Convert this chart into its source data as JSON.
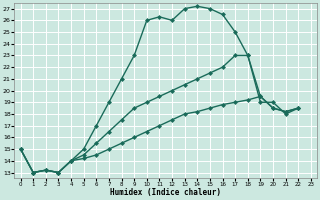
{
  "xlabel": "Humidex (Indice chaleur)",
  "bg_color": "#cce8e0",
  "grid_color": "#b0d8d0",
  "line_color": "#1a6b5a",
  "marker": "D",
  "marker_size": 2,
  "line_width": 1.0,
  "xlim": [
    -0.5,
    23.5
  ],
  "ylim": [
    12.5,
    27.5
  ],
  "xticks": [
    0,
    1,
    2,
    3,
    4,
    5,
    6,
    7,
    8,
    9,
    10,
    11,
    12,
    13,
    14,
    15,
    16,
    17,
    18,
    19,
    20,
    21,
    22,
    23
  ],
  "yticks": [
    13,
    14,
    15,
    16,
    17,
    18,
    19,
    20,
    21,
    22,
    23,
    24,
    25,
    26,
    27
  ],
  "series": [
    [
      [
        0,
        15.0
      ],
      [
        1,
        13.0
      ],
      [
        2,
        13.2
      ],
      [
        3,
        13.0
      ],
      [
        4,
        14.0
      ],
      [
        5,
        15.0
      ],
      [
        6,
        17.0
      ],
      [
        7,
        19.0
      ],
      [
        8,
        21.0
      ],
      [
        9,
        23.0
      ],
      [
        10,
        26.0
      ],
      [
        11,
        26.3
      ],
      [
        12,
        26.0
      ],
      [
        13,
        27.0
      ],
      [
        14,
        27.2
      ],
      [
        15,
        27.0
      ],
      [
        16,
        26.5
      ],
      [
        17,
        25.0
      ],
      [
        18,
        23.0
      ],
      [
        19,
        19.0
      ],
      [
        20,
        19.0
      ],
      [
        21,
        18.0
      ],
      [
        22,
        18.5
      ]
    ],
    [
      [
        0,
        15.0
      ],
      [
        1,
        13.0
      ],
      [
        2,
        13.2
      ],
      [
        3,
        13.0
      ],
      [
        4,
        14.0
      ],
      [
        5,
        14.5
      ],
      [
        6,
        15.5
      ],
      [
        7,
        16.5
      ],
      [
        8,
        17.5
      ],
      [
        9,
        18.5
      ],
      [
        10,
        19.0
      ],
      [
        11,
        19.5
      ],
      [
        12,
        20.0
      ],
      [
        13,
        20.5
      ],
      [
        14,
        21.0
      ],
      [
        15,
        21.5
      ],
      [
        16,
        22.0
      ],
      [
        17,
        23.0
      ],
      [
        18,
        23.0
      ],
      [
        19,
        19.5
      ],
      [
        20,
        18.5
      ],
      [
        21,
        18.2
      ],
      [
        22,
        18.5
      ]
    ],
    [
      [
        0,
        15.0
      ],
      [
        1,
        13.0
      ],
      [
        2,
        13.2
      ],
      [
        3,
        13.0
      ],
      [
        4,
        14.0
      ],
      [
        5,
        14.2
      ],
      [
        6,
        14.5
      ],
      [
        7,
        15.0
      ],
      [
        8,
        15.5
      ],
      [
        9,
        16.0
      ],
      [
        10,
        16.5
      ],
      [
        11,
        17.0
      ],
      [
        12,
        17.5
      ],
      [
        13,
        18.0
      ],
      [
        14,
        18.2
      ],
      [
        15,
        18.5
      ],
      [
        16,
        18.8
      ],
      [
        17,
        19.0
      ],
      [
        18,
        19.2
      ],
      [
        19,
        19.5
      ],
      [
        20,
        18.5
      ],
      [
        21,
        18.2
      ],
      [
        22,
        18.5
      ]
    ]
  ]
}
